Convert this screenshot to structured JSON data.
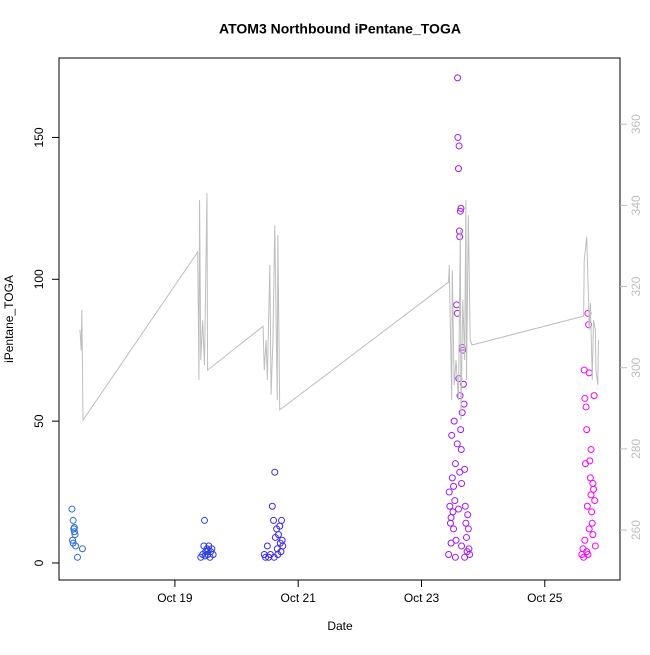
{
  "chart_data": {
    "type": "scatter",
    "title": "ATOM3 Northbound iPentane_TOGA",
    "xlabel": "Date",
    "ylabel": "iPentane_TOGA",
    "xlim": [
      17.12,
      26.22
    ],
    "xticks": [
      {
        "value": 19,
        "label": "Oct 19"
      },
      {
        "value": 21,
        "label": "Oct 21"
      },
      {
        "value": 23,
        "label": "Oct 23"
      },
      {
        "value": 25,
        "label": "Oct 25"
      }
    ],
    "ylim": [
      -6,
      178
    ],
    "yticks": [
      0,
      50,
      100,
      150
    ],
    "y2lim": [
      247.7,
      376.3
    ],
    "y2ticks": [
      260,
      280,
      300,
      320,
      340,
      360
    ],
    "y2tick_color": "#bebebe",
    "series": [
      {
        "type": "scatter",
        "color_scale": [
          "#2a6fdb",
          "#2b2bea",
          "#8a1ff0",
          "#ff00ff"
        ],
        "x": [
          17.33,
          17.35,
          17.36,
          17.37,
          17.38,
          17.34,
          17.35,
          17.39,
          17.42,
          17.5,
          17.37,
          19.42,
          19.45,
          19.47,
          19.48,
          19.5,
          19.52,
          19.53,
          19.55,
          19.57,
          19.58,
          19.6,
          19.62,
          19.49,
          19.54,
          20.45,
          20.47,
          20.5,
          20.52,
          20.55,
          20.58,
          20.6,
          20.62,
          20.63,
          20.65,
          20.66,
          20.67,
          20.68,
          20.7,
          20.71,
          20.72,
          20.73,
          20.74,
          20.75,
          20.61,
          23.44,
          23.45,
          23.46,
          23.47,
          23.48,
          23.49,
          23.5,
          23.51,
          23.52,
          23.53,
          23.54,
          23.55,
          23.56,
          23.57,
          23.58,
          23.585,
          23.59,
          23.6,
          23.61,
          23.62,
          23.615,
          23.63,
          23.64,
          23.605,
          23.625,
          23.635,
          23.645,
          23.65,
          23.66,
          23.67,
          23.68,
          23.69,
          23.7,
          23.71,
          23.72,
          23.73,
          23.74,
          23.75,
          23.76,
          23.77,
          23.78,
          23.6,
          23.55,
          23.65,
          23.7,
          23.62,
          23.58,
          23.66,
          23.52,
          23.48,
          25.6,
          25.62,
          25.63,
          25.64,
          25.65,
          25.66,
          25.67,
          25.68,
          25.69,
          25.7,
          25.71,
          25.72,
          25.73,
          25.74,
          25.75,
          25.76,
          25.77,
          25.78,
          25.79,
          25.8,
          25.81,
          25.82,
          25.68,
          25.72,
          25.75,
          25.65,
          25.78,
          25.7
        ],
        "values": [
          19,
          15,
          12,
          12.5,
          10,
          8,
          7,
          6,
          2,
          5,
          11,
          2,
          3,
          6,
          15,
          4,
          5,
          3,
          6,
          2,
          4,
          5,
          3,
          2.5,
          4.5,
          3,
          2,
          6,
          2,
          3,
          20,
          15,
          32,
          9,
          12,
          5,
          3,
          10,
          13,
          7,
          4,
          15,
          8,
          6,
          2,
          3,
          25,
          20,
          14,
          7,
          45,
          30,
          18,
          12,
          50,
          22,
          35,
          8,
          91,
          88,
          171,
          150,
          139,
          147,
          115,
          117,
          124,
          125,
          65,
          59,
          47,
          40,
          28,
          76,
          75,
          63,
          56,
          33,
          20,
          14,
          9,
          4,
          17,
          12,
          5,
          3,
          19,
          2,
          6,
          2,
          32,
          42,
          53,
          27,
          16,
          3,
          5,
          2,
          68,
          58,
          35,
          55,
          47,
          20,
          88,
          84,
          67,
          36,
          30,
          24,
          18,
          14,
          10,
          26,
          59,
          22,
          6,
          4,
          12,
          40,
          8,
          28,
          3
        ]
      },
      {
        "type": "line",
        "color": "#bebebe",
        "axis": "y2",
        "x": [
          17.46,
          17.48,
          17.49,
          17.51,
          19.37,
          19.39,
          19.4,
          19.42,
          19.45,
          19.48,
          19.52,
          19.53,
          20.43,
          20.45,
          20.48,
          20.5,
          20.51,
          20.54,
          20.56,
          20.59,
          20.62,
          20.66,
          20.67,
          20.7,
          23.44,
          23.45,
          23.49,
          23.5,
          23.53,
          23.56,
          23.6,
          23.63,
          23.64,
          23.67,
          23.7,
          23.72,
          23.73,
          23.76,
          23.79,
          23.82,
          25.63,
          25.64,
          25.68,
          25.71,
          25.72,
          25.74,
          25.77,
          25.79,
          25.82,
          25.83,
          25.86,
          25.87
        ],
        "values": [
          309.3,
          304.3,
          314.2,
          287.1,
          328.5,
          297,
          341.3,
          301.9,
          311.7,
          300.6,
          343,
          299.4,
          310.2,
          299.4,
          306.8,
          297,
          304.3,
          325.3,
          293.3,
          306.8,
          335.1,
          292,
          332.7,
          289.6,
          321.1,
          325.3,
          292,
          324,
          295.7,
          301.9,
          292,
          333.9,
          287.1,
          316.7,
          301.9,
          341.3,
          297,
          337.6,
          306.8,
          305.6,
          312.7,
          326.5,
          332.2,
          316.7,
          309.3,
          315.9,
          297,
          311.7,
          309.3,
          299.4,
          295.7,
          306.8
        ]
      }
    ]
  }
}
